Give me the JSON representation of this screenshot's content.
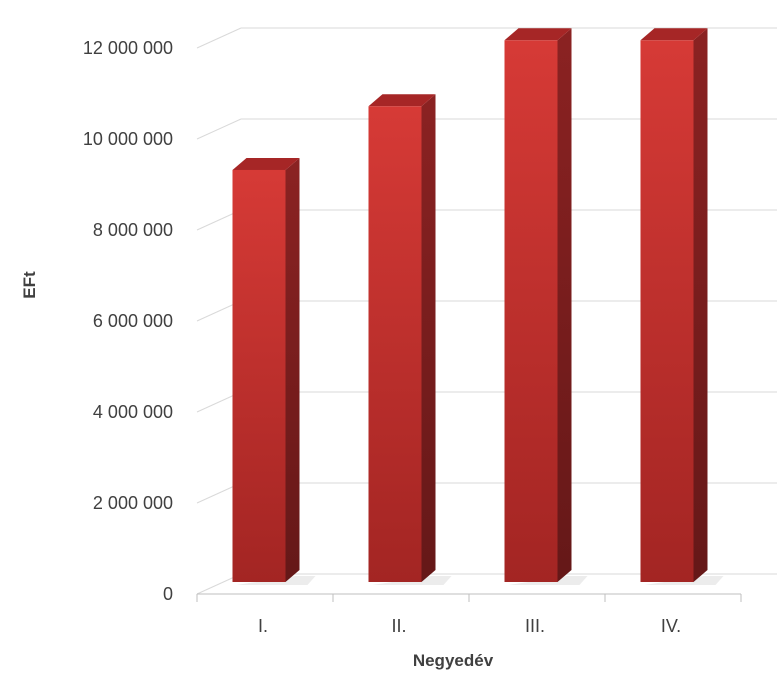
{
  "chart_data": {
    "type": "bar",
    "title": "",
    "xlabel": "Negyedév",
    "ylabel": "EFt",
    "categories": [
      "I.",
      "II.",
      "III.",
      "IV."
    ],
    "values": [
      9100000,
      10500000,
      11950000,
      11950000
    ],
    "ylim": [
      0,
      12000000
    ],
    "y_ticks": [
      0,
      2000000,
      4000000,
      6000000,
      8000000,
      10000000,
      12000000
    ],
    "y_tick_labels": [
      "0",
      "2 000 000",
      "4 000 000",
      "6 000 000",
      "8 000 000",
      "10 000 000",
      "12 000 000"
    ],
    "grid": true,
    "legend": "none",
    "style": "3d-column",
    "colors": {
      "bar_front": "#c8312f",
      "bar_side": "#7e1c1c",
      "bar_top": "#a62626",
      "grid": "#d9d9d9",
      "axis": "#bfbfbf"
    }
  }
}
